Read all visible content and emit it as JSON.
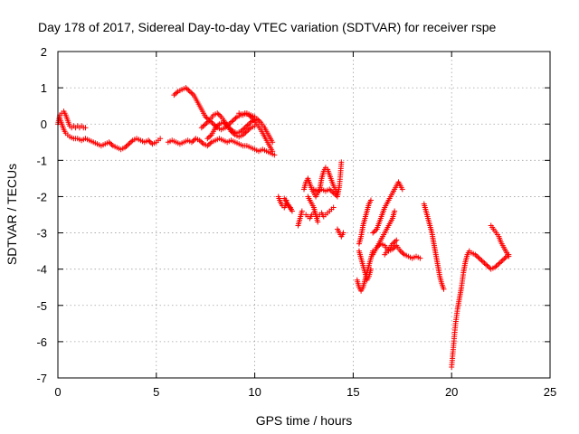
{
  "chart_data": {
    "type": "scatter",
    "title": "Day 178 of 2017, Sidereal Day-to-day VTEC variation (SDTVAR) for receiver rspe",
    "xlabel": "GPS time / hours",
    "ylabel": "SDTVAR / TECUs",
    "xlim": [
      0,
      25
    ],
    "ylim": [
      -7,
      2
    ],
    "xticks": [
      0,
      5,
      10,
      15,
      20,
      25
    ],
    "yticks": [
      -7,
      -6,
      -5,
      -4,
      -3,
      -2,
      -1,
      0,
      1,
      2
    ],
    "xtick_labels": [
      "0",
      "5",
      "10",
      "15",
      "20",
      "25"
    ],
    "ytick_labels": [
      "-7",
      "-6",
      "-5",
      "-4",
      "-3",
      "-2",
      "-1",
      "0",
      "1",
      "2"
    ],
    "grid": true,
    "marker": "+",
    "color": "#ff0000",
    "tracks": [
      [
        [
          0.0,
          0.0
        ],
        [
          0.1,
          0.25
        ],
        [
          0.2,
          0.3
        ],
        [
          0.3,
          0.35
        ],
        [
          0.4,
          0.25
        ],
        [
          0.5,
          0.1
        ],
        [
          0.6,
          -0.05
        ],
        [
          0.7,
          -0.1
        ],
        [
          0.8,
          -0.05
        ],
        [
          0.9,
          -0.1
        ],
        [
          1.0,
          -0.05
        ],
        [
          1.1,
          -0.1
        ],
        [
          1.2,
          -0.05
        ],
        [
          1.3,
          -0.1
        ],
        [
          1.4,
          -0.1
        ]
      ],
      [
        [
          0.1,
          0.15
        ],
        [
          0.2,
          0.0
        ],
        [
          0.3,
          -0.15
        ],
        [
          0.4,
          -0.25
        ],
        [
          0.5,
          -0.3
        ],
        [
          0.6,
          -0.35
        ],
        [
          0.8,
          -0.4
        ],
        [
          1.0,
          -0.4
        ],
        [
          1.2,
          -0.45
        ],
        [
          1.4,
          -0.4
        ],
        [
          1.6,
          -0.45
        ],
        [
          1.8,
          -0.5
        ],
        [
          2.0,
          -0.55
        ],
        [
          2.2,
          -0.6
        ],
        [
          2.4,
          -0.55
        ],
        [
          2.6,
          -0.5
        ],
        [
          2.8,
          -0.6
        ],
        [
          3.0,
          -0.65
        ],
        [
          3.2,
          -0.7
        ],
        [
          3.4,
          -0.65
        ],
        [
          3.6,
          -0.55
        ],
        [
          3.8,
          -0.45
        ],
        [
          4.0,
          -0.4
        ],
        [
          4.2,
          -0.45
        ],
        [
          4.4,
          -0.5
        ],
        [
          4.6,
          -0.45
        ],
        [
          4.8,
          -0.55
        ],
        [
          5.0,
          -0.5
        ],
        [
          5.1,
          -0.45
        ],
        [
          5.2,
          -0.4
        ]
      ],
      [
        [
          5.6,
          -0.5
        ],
        [
          5.8,
          -0.45
        ],
        [
          6.0,
          -0.5
        ],
        [
          6.2,
          -0.55
        ],
        [
          6.4,
          -0.5
        ],
        [
          6.6,
          -0.45
        ],
        [
          6.8,
          -0.5
        ],
        [
          7.0,
          -0.4
        ],
        [
          7.2,
          -0.45
        ],
        [
          7.4,
          -0.55
        ],
        [
          7.6,
          -0.6
        ],
        [
          7.8,
          -0.5
        ],
        [
          8.0,
          -0.45
        ],
        [
          8.2,
          -0.4
        ],
        [
          8.4,
          -0.45
        ],
        [
          8.6,
          -0.5
        ],
        [
          8.8,
          -0.45
        ],
        [
          9.0,
          -0.5
        ],
        [
          9.2,
          -0.55
        ],
        [
          9.4,
          -0.6
        ],
        [
          9.6,
          -0.6
        ],
        [
          9.8,
          -0.65
        ],
        [
          10.0,
          -0.7
        ],
        [
          10.2,
          -0.75
        ],
        [
          10.4,
          -0.7
        ],
        [
          10.6,
          -0.75
        ],
        [
          10.8,
          -0.8
        ],
        [
          11.0,
          -0.85
        ]
      ],
      [
        [
          5.9,
          0.8
        ],
        [
          6.1,
          0.9
        ],
        [
          6.3,
          0.95
        ],
        [
          6.5,
          1.0
        ],
        [
          6.7,
          0.9
        ],
        [
          6.9,
          0.8
        ],
        [
          7.1,
          0.6
        ],
        [
          7.3,
          0.4
        ],
        [
          7.5,
          0.2
        ],
        [
          7.7,
          0.1
        ],
        [
          7.9,
          0.0
        ],
        [
          8.1,
          -0.1
        ],
        [
          8.3,
          -0.15
        ],
        [
          8.5,
          -0.1
        ],
        [
          8.7,
          0.0
        ],
        [
          8.9,
          0.1
        ],
        [
          9.1,
          0.2
        ],
        [
          9.3,
          0.25
        ],
        [
          9.5,
          0.3
        ],
        [
          9.7,
          0.25
        ],
        [
          9.9,
          0.15
        ],
        [
          10.1,
          0.0
        ],
        [
          10.3,
          -0.15
        ],
        [
          10.5,
          -0.35
        ],
        [
          10.7,
          -0.55
        ],
        [
          10.9,
          -0.75
        ]
      ],
      [
        [
          7.3,
          -0.1
        ],
        [
          7.5,
          0.0
        ],
        [
          7.7,
          0.1
        ],
        [
          7.9,
          0.25
        ],
        [
          8.1,
          0.3
        ],
        [
          8.3,
          0.2
        ],
        [
          8.5,
          0.05
        ],
        [
          8.7,
          -0.1
        ],
        [
          8.9,
          -0.2
        ],
        [
          9.1,
          -0.25
        ],
        [
          9.3,
          -0.2
        ],
        [
          9.5,
          -0.1
        ],
        [
          9.7,
          0.0
        ],
        [
          9.9,
          0.1
        ],
        [
          10.1,
          0.15
        ],
        [
          10.3,
          0.05
        ],
        [
          10.5,
          -0.1
        ],
        [
          10.7,
          -0.3
        ],
        [
          10.9,
          -0.5
        ]
      ],
      [
        [
          7.6,
          -0.4
        ],
        [
          7.8,
          -0.3
        ],
        [
          8.0,
          -0.1
        ],
        [
          8.2,
          0.0
        ],
        [
          8.4,
          0.05
        ],
        [
          8.6,
          -0.05
        ],
        [
          8.8,
          -0.2
        ],
        [
          9.0,
          -0.3
        ],
        [
          9.2,
          -0.35
        ],
        [
          9.4,
          -0.3
        ],
        [
          9.6,
          -0.2
        ],
        [
          9.8,
          -0.1
        ],
        [
          10.0,
          -0.05
        ]
      ],
      [
        [
          9.2,
          0.3
        ],
        [
          9.4,
          0.25
        ],
        [
          9.6,
          0.3
        ],
        [
          9.8,
          0.25
        ],
        [
          10.0,
          0.2
        ]
      ],
      [
        [
          11.2,
          -2.0
        ],
        [
          11.3,
          -2.15
        ],
        [
          11.4,
          -2.25
        ],
        [
          11.5,
          -2.3
        ],
        [
          11.6,
          -2.2
        ],
        [
          11.7,
          -2.25
        ],
        [
          11.8,
          -2.3
        ],
        [
          11.9,
          -2.4
        ],
        [
          11.5,
          -2.05
        ],
        [
          11.6,
          -2.1
        ]
      ],
      [
        [
          12.2,
          -2.8
        ],
        [
          12.3,
          -2.6
        ],
        [
          12.4,
          -2.4
        ]
      ],
      [
        [
          12.5,
          -1.8
        ],
        [
          12.6,
          -1.6
        ],
        [
          12.7,
          -1.5
        ],
        [
          12.8,
          -1.65
        ],
        [
          12.9,
          -1.8
        ],
        [
          13.0,
          -1.9
        ],
        [
          13.1,
          -2.0
        ],
        [
          13.2,
          -1.9
        ],
        [
          13.3,
          -1.8
        ],
        [
          13.4,
          -1.5
        ],
        [
          13.5,
          -1.3
        ],
        [
          13.6,
          -1.2
        ],
        [
          13.7,
          -1.25
        ],
        [
          13.8,
          -1.4
        ],
        [
          13.9,
          -1.55
        ],
        [
          14.0,
          -1.7
        ],
        [
          14.1,
          -1.8
        ],
        [
          14.2,
          -1.9
        ]
      ],
      [
        [
          12.6,
          -2.5
        ],
        [
          12.7,
          -2.55
        ],
        [
          12.8,
          -2.6
        ],
        [
          12.9,
          -2.5
        ],
        [
          13.0,
          -2.45
        ],
        [
          13.1,
          -2.5
        ],
        [
          13.2,
          -2.55
        ],
        [
          13.3,
          -2.5
        ],
        [
          13.4,
          -2.45
        ],
        [
          13.5,
          -2.55
        ],
        [
          13.6,
          -2.5
        ],
        [
          13.7,
          -2.45
        ],
        [
          13.8,
          -2.4
        ],
        [
          13.9,
          -2.35
        ],
        [
          14.0,
          -2.3
        ]
      ],
      [
        [
          12.7,
          -2.0
        ],
        [
          12.8,
          -2.1
        ],
        [
          12.9,
          -2.2
        ],
        [
          13.0,
          -2.3
        ],
        [
          13.1,
          -2.5
        ],
        [
          13.2,
          -2.7
        ]
      ],
      [
        [
          13.0,
          -1.8
        ],
        [
          13.2,
          -1.85
        ],
        [
          13.4,
          -1.8
        ],
        [
          13.6,
          -1.85
        ],
        [
          13.8,
          -1.8
        ],
        [
          14.0,
          -1.9
        ],
        [
          14.2,
          -2.0
        ],
        [
          14.3,
          -1.7
        ],
        [
          14.35,
          -1.4
        ],
        [
          14.4,
          -1.05
        ]
      ],
      [
        [
          14.2,
          -2.9
        ],
        [
          14.3,
          -3.0
        ],
        [
          14.4,
          -3.1
        ],
        [
          14.5,
          -3.0
        ]
      ],
      [
        [
          15.2,
          -4.3
        ],
        [
          15.3,
          -4.5
        ],
        [
          15.4,
          -4.6
        ],
        [
          15.5,
          -4.5
        ],
        [
          15.6,
          -4.3
        ],
        [
          15.7,
          -4.1
        ],
        [
          15.8,
          -3.9
        ],
        [
          15.9,
          -3.7
        ],
        [
          16.0,
          -3.5
        ]
      ],
      [
        [
          15.3,
          -3.3
        ],
        [
          15.4,
          -3.1
        ],
        [
          15.5,
          -2.8
        ],
        [
          15.6,
          -2.6
        ],
        [
          15.7,
          -2.4
        ],
        [
          15.8,
          -2.2
        ],
        [
          15.9,
          -2.1
        ]
      ],
      [
        [
          15.3,
          -3.5
        ],
        [
          15.4,
          -3.7
        ],
        [
          15.5,
          -3.9
        ],
        [
          15.6,
          -4.1
        ],
        [
          15.7,
          -4.3
        ],
        [
          15.8,
          -4.2
        ],
        [
          15.9,
          -4.0
        ]
      ],
      [
        [
          16.0,
          -3.6
        ],
        [
          16.2,
          -3.4
        ],
        [
          16.4,
          -3.3
        ],
        [
          16.6,
          -3.35
        ],
        [
          16.8,
          -3.5
        ],
        [
          17.0,
          -3.45
        ],
        [
          17.2,
          -3.35
        ],
        [
          17.4,
          -3.5
        ],
        [
          17.6,
          -3.6
        ],
        [
          17.8,
          -3.65
        ],
        [
          18.0,
          -3.7
        ],
        [
          18.2,
          -3.65
        ],
        [
          18.4,
          -3.7
        ]
      ],
      [
        [
          16.0,
          -3.0
        ],
        [
          16.2,
          -2.9
        ],
        [
          16.4,
          -2.6
        ],
        [
          16.6,
          -2.3
        ],
        [
          16.8,
          -2.1
        ],
        [
          17.0,
          -1.9
        ],
        [
          17.2,
          -1.7
        ],
        [
          17.3,
          -1.6
        ],
        [
          17.4,
          -1.7
        ],
        [
          17.5,
          -1.8
        ]
      ],
      [
        [
          16.2,
          -3.4
        ],
        [
          16.4,
          -3.2
        ],
        [
          16.6,
          -3.0
        ],
        [
          16.8,
          -2.8
        ],
        [
          17.0,
          -2.6
        ],
        [
          17.1,
          -2.4
        ]
      ],
      [
        [
          16.6,
          -3.6
        ],
        [
          16.8,
          -3.45
        ],
        [
          17.0,
          -3.3
        ],
        [
          17.2,
          -3.2
        ]
      ],
      [
        [
          18.6,
          -2.2
        ],
        [
          18.7,
          -2.4
        ],
        [
          18.8,
          -2.6
        ],
        [
          18.9,
          -2.8
        ],
        [
          19.0,
          -3.0
        ],
        [
          19.1,
          -3.3
        ],
        [
          19.2,
          -3.6
        ],
        [
          19.3,
          -3.9
        ],
        [
          19.4,
          -4.2
        ],
        [
          19.5,
          -4.4
        ],
        [
          19.6,
          -4.55
        ]
      ],
      [
        [
          20.0,
          -6.7
        ],
        [
          20.05,
          -6.4
        ],
        [
          20.1,
          -6.1
        ],
        [
          20.15,
          -5.8
        ],
        [
          20.2,
          -5.5
        ],
        [
          20.3,
          -5.1
        ],
        [
          20.4,
          -4.8
        ],
        [
          20.5,
          -4.5
        ],
        [
          20.6,
          -4.1
        ],
        [
          20.7,
          -3.8
        ],
        [
          20.8,
          -3.6
        ],
        [
          20.9,
          -3.5
        ],
        [
          21.0,
          -3.55
        ],
        [
          21.2,
          -3.6
        ],
        [
          21.4,
          -3.7
        ],
        [
          21.6,
          -3.8
        ],
        [
          21.8,
          -3.9
        ],
        [
          22.0,
          -4.0
        ],
        [
          22.2,
          -3.95
        ],
        [
          22.4,
          -3.85
        ],
        [
          22.6,
          -3.75
        ],
        [
          22.8,
          -3.65
        ],
        [
          22.9,
          -3.6
        ]
      ],
      [
        [
          22.0,
          -2.8
        ],
        [
          22.2,
          -2.95
        ],
        [
          22.4,
          -3.1
        ],
        [
          22.5,
          -3.25
        ],
        [
          22.6,
          -3.35
        ],
        [
          22.7,
          -3.45
        ],
        [
          22.8,
          -3.55
        ],
        [
          22.9,
          -3.65
        ]
      ]
    ]
  }
}
